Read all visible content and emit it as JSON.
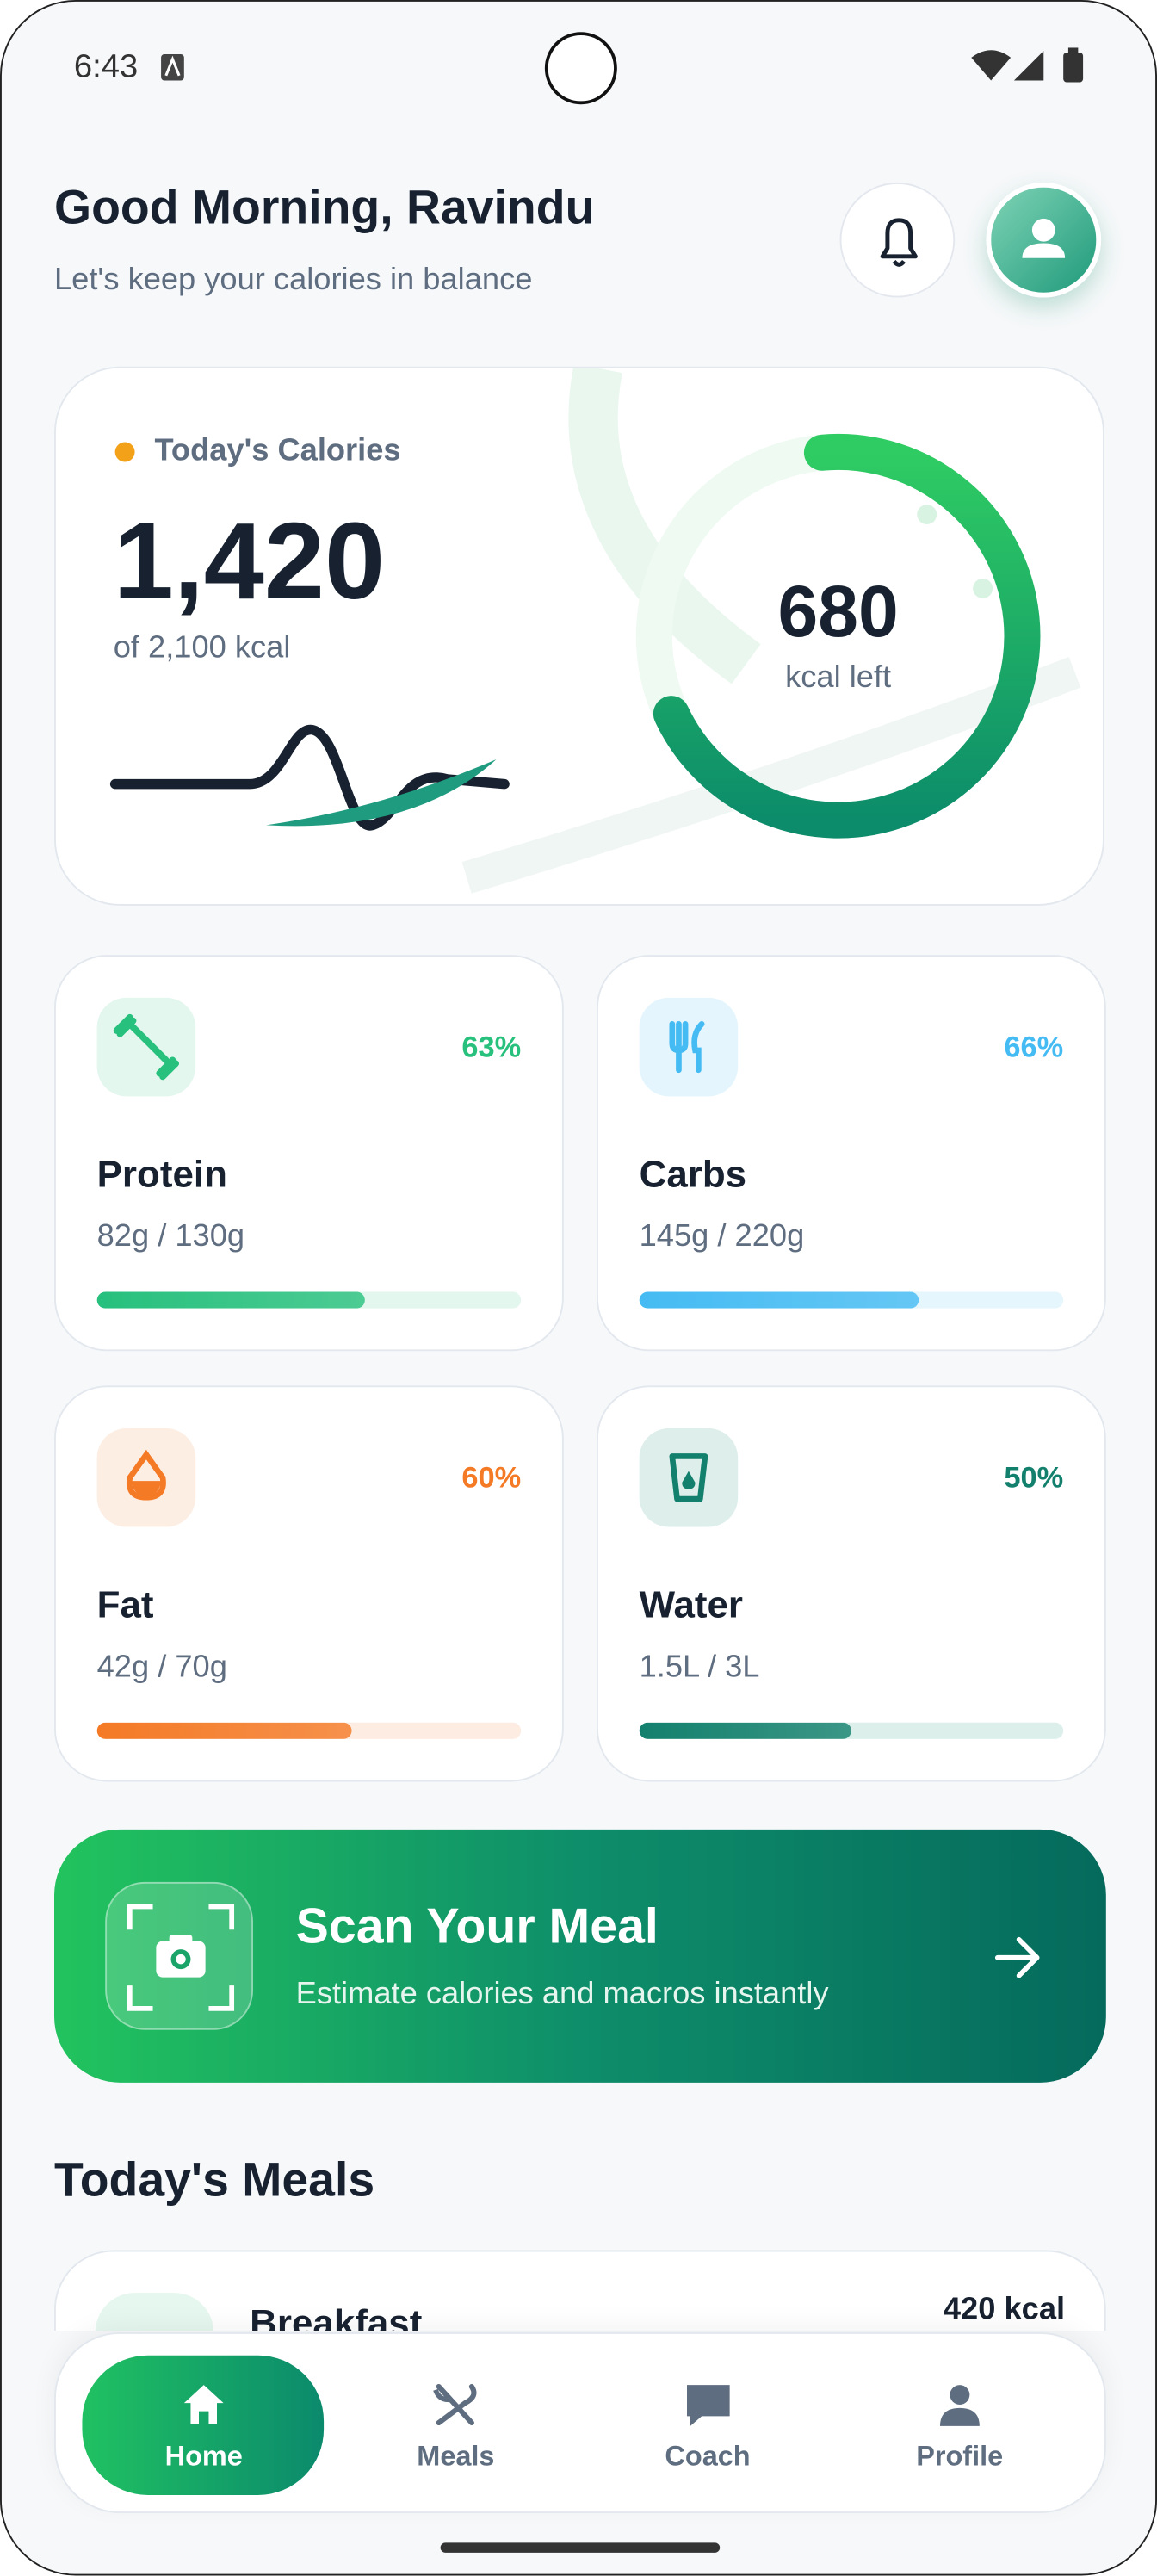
{
  "status_bar": {
    "time": "6:43"
  },
  "header": {
    "title": "Good Morning, Ravindu",
    "subtitle": "Let's keep your calories in balance"
  },
  "calorie_card": {
    "label": "Today's Calories",
    "consumed": "1,420",
    "goal": "of 2,100 kcal",
    "remaining": "680",
    "remaining_label": "kcal left"
  },
  "macros": [
    {
      "name": "Protein",
      "amount": "82g / 130g",
      "percent": {
        "value": 63,
        "label": "63%"
      },
      "color": "#27c07d"
    },
    {
      "name": "Carbs",
      "amount": "145g / 220g",
      "percent": {
        "value": 66,
        "label": "66%"
      },
      "color": "#45bbf3"
    },
    {
      "name": "Fat",
      "amount": "42g / 70g",
      "percent": {
        "value": 60,
        "label": "60%"
      },
      "color": "#f47a26"
    },
    {
      "name": "Water",
      "amount": "1.5L / 3L",
      "percent": {
        "value": 50,
        "label": "50%"
      },
      "color": "#13806d"
    }
  ],
  "scan": {
    "title": "Scan Your Meal",
    "subtitle": "Estimate calories and macros instantly"
  },
  "meals": {
    "title": "Today's Meals",
    "items": [
      {
        "name": "Breakfast",
        "calories": "420 kcal"
      }
    ]
  },
  "nav": {
    "items": [
      {
        "label": "Home"
      },
      {
        "label": "Meals"
      },
      {
        "label": "Coach"
      },
      {
        "label": "Profile"
      }
    ]
  }
}
